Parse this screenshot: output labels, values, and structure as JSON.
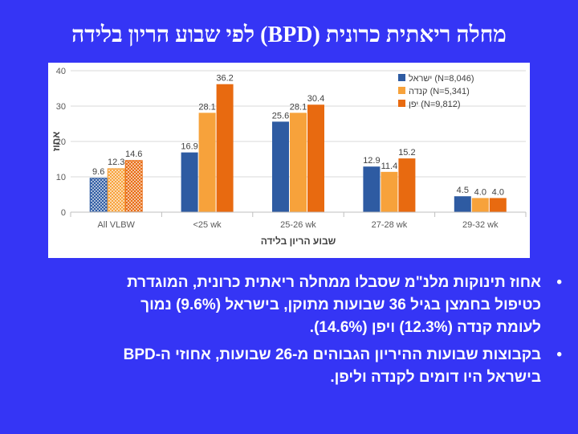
{
  "slide": {
    "title": "מחלה ריאתית כרונית (BPD) לפי שבוע הריון בלידה"
  },
  "chart_data": {
    "type": "bar",
    "title": "",
    "xlabel": "שבוע הריון בלידה",
    "ylabel": "אחוז",
    "ylim": [
      0,
      40
    ],
    "yticks": [
      0,
      10,
      20,
      30,
      40
    ],
    "categories": [
      "All VLBW",
      "<25 wk",
      "25-26 wk",
      "27-28 wk",
      "29-32 wk"
    ],
    "series": [
      {
        "name": "ישראל (N=8,046)",
        "color": "#2e5ba2",
        "values": [
          9.6,
          16.9,
          25.6,
          12.9,
          4.5
        ]
      },
      {
        "name": "קנדה (N=5,341)",
        "color": "#f7a23b",
        "values": [
          12.3,
          28.1,
          28.1,
          11.4,
          4.0
        ]
      },
      {
        "name": "יפן (N=9,812)",
        "color": "#e86a10",
        "values": [
          14.6,
          36.2,
          30.4,
          15.2,
          4.0
        ]
      }
    ],
    "value_labels": [
      [
        "9.6",
        "16.9",
        "25.6",
        "12.9",
        "4.5"
      ],
      [
        "12.3",
        "28.1",
        "28.1",
        "11.4",
        "4.0"
      ],
      [
        "14.6",
        "36.2",
        "30.4",
        "15.2",
        "4.0"
      ]
    ],
    "legend_position": "top-right",
    "grid": true
  },
  "bullets": [
    {
      "symbol": "•",
      "lines": [
        "אחוז תינוקות מלנ\"מ שסבלו ממחלה ריאתית כרונית, המוגדרת",
        "כטיפול בחמצן בגיל 36 שבועות מתוקן, בישראל (9.6%) נמוך",
        "לעומת קנדה (12.3%) ויפן (14.6%)."
      ]
    },
    {
      "symbol": "•",
      "lines": [
        "בקבוצות שבועות ההיריון הגבוהים מ-26 שבועות, אחוזי ה-BPD",
        "בישראל היו דומים לקנדה וליפן."
      ]
    }
  ]
}
